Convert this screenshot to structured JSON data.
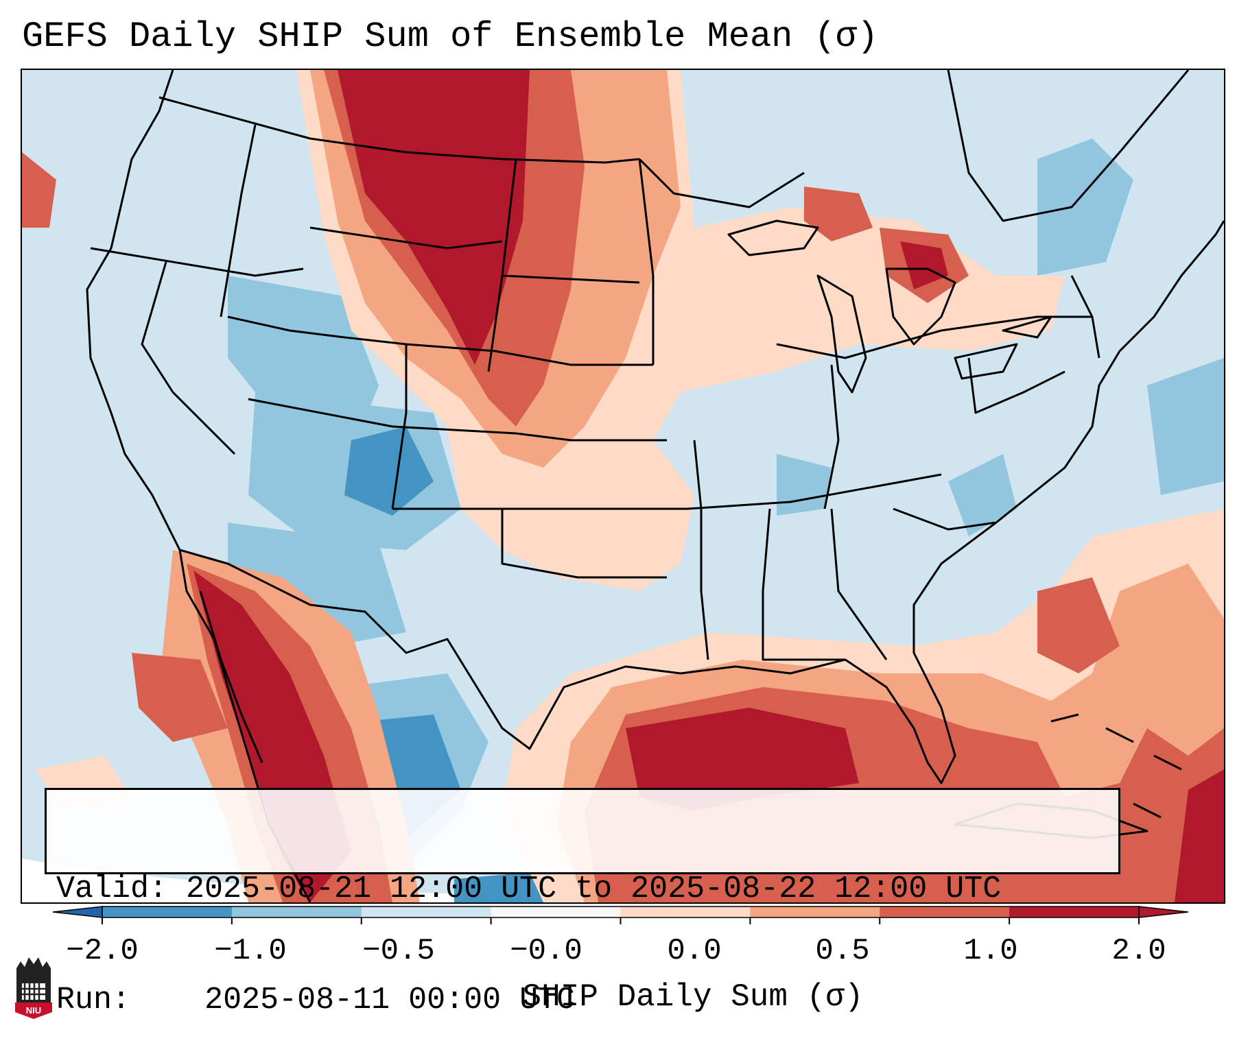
{
  "title": "GEFS Daily SHIP Sum of Ensemble Mean (σ)",
  "info": {
    "valid_label": "Valid:",
    "valid_value": "2025-08-21 12:00 UTC to 2025-08-22 12:00 UTC",
    "run_label": "Run:",
    "run_value": "2025-08-11 00:00 UTC"
  },
  "colorbar": {
    "label": "SHIP Daily Sum (σ)",
    "ticks": [
      "−2.0",
      "−1.0",
      "−0.5",
      "−0.0",
      "0.0",
      "0.5",
      "1.0",
      "2.0"
    ],
    "colors": [
      "#4393c3",
      "#92c5de",
      "#d1e5f0",
      "#f7f7f7",
      "#fddbc7",
      "#f4a582",
      "#d6604d",
      "#b2182b"
    ],
    "under_color": "#2166ac",
    "over_color": "#b2182b"
  },
  "logo_text": "NIU"
}
